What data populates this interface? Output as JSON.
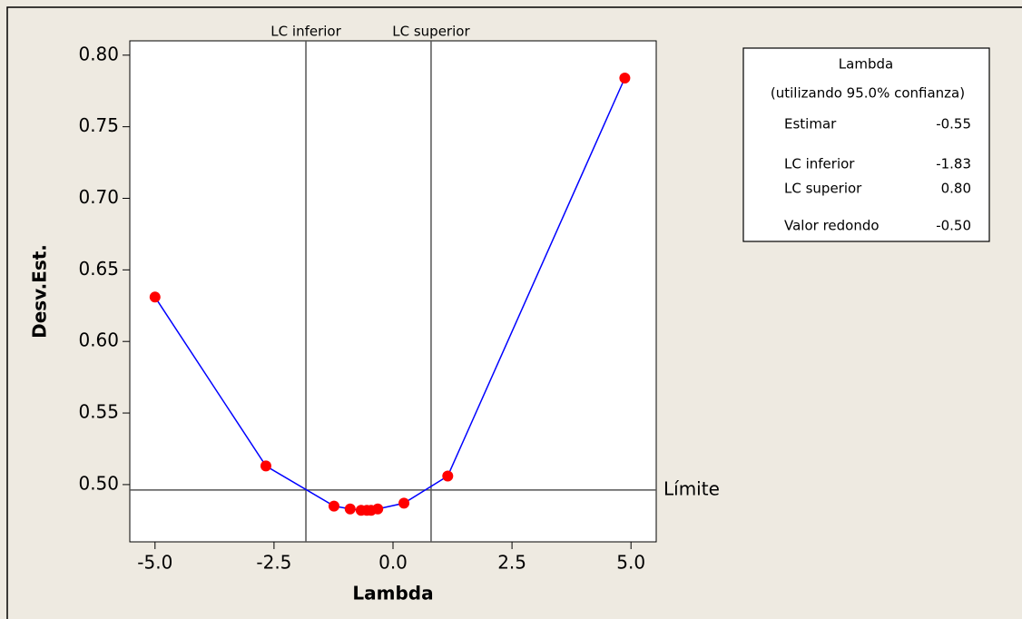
{
  "chart_data": {
    "type": "line",
    "x_label": "Lambda",
    "y_label": "Desv.Est.",
    "x": [
      -5.0,
      -2.67,
      -1.24,
      -0.9,
      -0.67,
      -0.55,
      -0.46,
      -0.32,
      0.23,
      1.15,
      4.87
    ],
    "series": [
      {
        "color": "#0000ff",
        "marker_color": "#ff0000",
        "values": [
          0.631,
          0.513,
          0.485,
          0.483,
          0.482,
          0.482,
          0.482,
          0.483,
          0.487,
          0.506,
          0.784
        ]
      }
    ],
    "xlim": [
      -5.53,
      5.53
    ],
    "xticks": [
      {
        "value": -5,
        "label": "-5.0"
      },
      -2.5,
      {
        "value": 0,
        "label": "0.0"
      },
      2.5,
      {
        "value": 5,
        "label": "5.0"
      }
    ],
    "ylim": [
      0.46,
      0.81
    ],
    "yticks": [
      {
        "value": 0.5,
        "label": "0.50"
      },
      0.55,
      {
        "value": 0.6,
        "label": "0.60"
      },
      0.65,
      {
        "value": 0.7,
        "label": "0.70"
      },
      0.75,
      {
        "value": 0.8,
        "label": "0.80"
      }
    ],
    "vlines": [
      {
        "value": -1.83,
        "label": "LC inferior"
      },
      {
        "value": 0.8,
        "label": "LC superior"
      }
    ],
    "hline": {
      "value": 0.4962,
      "label": "Límite"
    },
    "info_box": {
      "title": "Lambda",
      "subtitle": "(utilizando 95.0% confianza)",
      "rows": [
        [
          "Estimar",
          "-0.55"
        ],
        [
          "LC inferior",
          "-1.83"
        ],
        [
          "LC superior",
          "0.80"
        ],
        [
          "Valor redondo",
          "-0.50"
        ]
      ]
    }
  }
}
